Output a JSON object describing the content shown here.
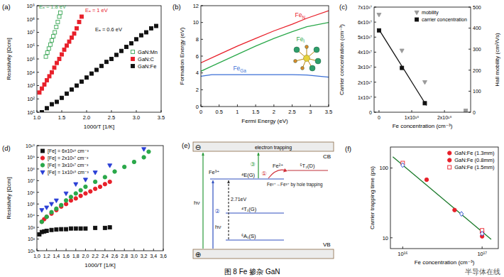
{
  "chart_data": [
    {
      "type": "scatter",
      "title": "(a)",
      "xlabel": "1000/T [1/K]",
      "ylabel": "Resistivity [Ωcm]",
      "log": "y",
      "grid": false,
      "legend": "right",
      "xlim": [
        1.0,
        3.5
      ],
      "ylim": [
        10,
        1000000000
      ],
      "xticks": [
        {
          "value": 1,
          "label": "1.0"
        },
        1.5,
        {
          "value": 2,
          "label": "2.0"
        },
        2.5,
        {
          "value": 3,
          "label": "3.0"
        },
        3.5
      ],
      "yticks": [
        {
          "value": 10,
          "label": "10¹"
        },
        {
          "value": 100,
          "label": "10²"
        },
        {
          "value": 1000,
          "label": "10³"
        },
        {
          "value": 10000,
          "label": "10⁴"
        },
        {
          "value": 100000,
          "label": "10⁵"
        },
        {
          "value": 1000000,
          "label": "10⁶"
        },
        {
          "value": 10000000,
          "label": "10⁷"
        },
        {
          "value": 100000000,
          "label": "10⁸"
        },
        {
          "value": 1000000000,
          "label": "10⁹"
        }
      ],
      "annotations": [
        {
          "text": "Eₐ = 1.8 eV",
          "color": "#3aa655"
        },
        {
          "text": "Eₐ = 1 eV",
          "color": "#e8202a"
        },
        {
          "text": "Eₐ = 0.6 eV",
          "color": "#111111"
        }
      ],
      "series": [
        {
          "name": "GaN:Mn",
          "color": "#3aa655",
          "marker": "open-square",
          "x": [
            1.18,
            1.21,
            1.24,
            1.27,
            1.3,
            1.33,
            1.36,
            1.39,
            1.42,
            1.45,
            1.47
          ],
          "values": [
            150000,
            300000,
            600000,
            1200000,
            2500000,
            5000000,
            10000000,
            25000000,
            60000000,
            150000000,
            300000000
          ]
        },
        {
          "name": "GaN:C",
          "color": "#e8202a",
          "marker": "square",
          "x": [
            1.05,
            1.1,
            1.15,
            1.2,
            1.25,
            1.3,
            1.35,
            1.4,
            1.45,
            1.5,
            1.55,
            1.6,
            1.65,
            1.7,
            1.75,
            1.8,
            1.85,
            1.9
          ],
          "values": [
            300,
            600,
            1200,
            2500,
            5000,
            10000,
            22000,
            50000,
            100000,
            220000,
            500000,
            1000000,
            2000000,
            4000000,
            8000000,
            20000000,
            60000000,
            150000000
          ]
        },
        {
          "name": "GaN:Fe",
          "color": "#111111",
          "marker": "square",
          "x": [
            1.1,
            1.2,
            1.3,
            1.4,
            1.5,
            1.6,
            1.7,
            1.8,
            1.9,
            2.0,
            2.1,
            2.2,
            2.3,
            2.4,
            2.5,
            2.6,
            2.7,
            2.8,
            2.9,
            3.0,
            3.1,
            3.2,
            3.3,
            3.4
          ],
          "values": [
            10,
            20,
            40,
            60,
            120,
            250,
            500,
            1000,
            2000,
            4000,
            8000,
            15000,
            30000,
            60000,
            100000,
            200000,
            400000,
            800000,
            1500000,
            3000000,
            6000000,
            10000000,
            20000000,
            30000000
          ]
        }
      ]
    },
    {
      "type": "line",
      "title": "(b)",
      "xlabel": "Fermi Energy (eV)",
      "ylabel": "Formation Energy (eV)",
      "grid": false,
      "xlim": [
        0,
        3.5
      ],
      "ylim": [
        0,
        12
      ],
      "xticks": [
        0,
        0.5,
        1,
        1.5,
        2,
        2.5,
        3,
        3.5
      ],
      "yticks": [
        0,
        2,
        4,
        6,
        8,
        10,
        12
      ],
      "series": [
        {
          "name": "FeN",
          "color": "#e8202a",
          "x": [
            0,
            0.5,
            1,
            1.5,
            2,
            2.5,
            2.9,
            3.5
          ],
          "values": [
            5.2,
            6.2,
            7.2,
            8.1,
            9.0,
            9.8,
            10.5,
            11.4
          ]
        },
        {
          "name": "Fei",
          "color": "#2aa84a",
          "x": [
            0,
            0.3,
            1,
            1.5,
            2,
            2.5,
            2.9,
            3.5
          ],
          "values": [
            4.2,
            4.8,
            6.2,
            7.2,
            8.1,
            8.9,
            9.5,
            10.0
          ]
        },
        {
          "name": "FeGa",
          "color": "#3b6fd6",
          "x": [
            0,
            0.3,
            1,
            2,
            2.5,
            2.9,
            3.5
          ],
          "values": [
            3.6,
            3.8,
            3.8,
            3.8,
            3.8,
            3.75,
            3.5
          ]
        }
      ]
    },
    {
      "type": "scatter",
      "title": "(c)",
      "xlabel": "Fe concentration (cm⁻³)",
      "ylabel": "Carrier concentration (cm⁻³)",
      "y2label": "Hall mobility (cm²/Vs)",
      "grid": false,
      "legend": "upper right",
      "xlim": [
        -1.5e+17,
        2.8e+18
      ],
      "ylim": [
        0,
        7e+17
      ],
      "y2lim": [
        0,
        500
      ],
      "xticks": [
        0,
        {
          "value": 1e+18,
          "label": "1x10¹⁸"
        },
        {
          "value": 2e+18,
          "label": "2x10¹⁸"
        }
      ],
      "yticks": [
        0,
        {
          "value": 1e+17,
          "label": "1x10¹⁷"
        },
        {
          "value": 2e+17,
          "label": "2x10¹⁷"
        },
        {
          "value": 3e+17,
          "label": "3x10¹⁷"
        },
        {
          "value": 4e+17,
          "label": "4x10¹⁷"
        },
        {
          "value": 5e+17,
          "label": "5x10¹⁷"
        },
        {
          "value": 6e+17,
          "label": "6x10¹⁷"
        },
        {
          "value": 7e+17,
          "label": "7x10¹⁷"
        }
      ],
      "y2ticks": [
        0,
        100,
        200,
        300,
        400,
        500
      ],
      "series": [
        {
          "type": "line",
          "color": "#111111",
          "x": [
            0,
            1.45e+18
          ],
          "values": [
            5.5e+17,
            4.5e+16
          ]
        },
        {
          "name": "mobility",
          "color": "#9a9a9a",
          "marker": "triangle-down",
          "axis": "y2",
          "x": [
            0,
            7e+17,
            1.4e+18
          ],
          "values": [
            464,
            293,
            143
          ]
        },
        {
          "name": "carrier concentration",
          "color": "#111111",
          "colors": [
            "#111111",
            "#111111",
            "#111111",
            "#9a9a9a"
          ],
          "marker": "square",
          "x": [
            0,
            7e+17,
            1.4e+18,
            2.65e+18
          ],
          "values": [
            5.45e+17,
            2.95e+17,
            6e+16,
            1e+16
          ]
        }
      ]
    },
    {
      "type": "scatter",
      "title": "(d)",
      "xlabel": "1000/T [1/K]",
      "ylabel": "Resistivity [Ωcm]",
      "log": "y",
      "grid": false,
      "legend": "upper left",
      "xlim": [
        1.0,
        3.6
      ],
      "ylim": [
        10,
        10000000000
      ],
      "xticks": [
        {
          "value": 1.0,
          "label": "1,0"
        },
        {
          "value": 1.2,
          "label": "1,2"
        },
        {
          "value": 1.4,
          "label": "1,4"
        },
        {
          "value": 1.6,
          "label": "1,6"
        },
        {
          "value": 1.8,
          "label": "1,8"
        },
        {
          "value": 2.0,
          "label": "2,0"
        },
        {
          "value": 2.2,
          "label": "2,2"
        },
        {
          "value": 2.4,
          "label": "2,4"
        },
        {
          "value": 2.6,
          "label": "2,6"
        },
        {
          "value": 2.8,
          "label": "2,8"
        },
        {
          "value": 3.0,
          "label": "3,0"
        },
        {
          "value": 3.2,
          "label": "3,2"
        },
        {
          "value": 3.4,
          "label": "3,4"
        },
        {
          "value": 3.6,
          "label": "3,6"
        }
      ],
      "yticks": [
        {
          "value": 10,
          "label": "10¹"
        },
        {
          "value": 100,
          "label": "10²"
        },
        {
          "value": 1000,
          "label": "10³"
        },
        {
          "value": 10000,
          "label": "10⁴"
        },
        {
          "value": 100000,
          "label": "10⁵"
        },
        {
          "value": 1000000,
          "label": "10⁶"
        },
        {
          "value": 10000000,
          "label": "10⁷"
        },
        {
          "value": 100000000,
          "label": "10⁸"
        },
        {
          "value": 1000000000,
          "label": "10⁹"
        },
        {
          "value": 10000000000,
          "label": "10¹⁰"
        }
      ],
      "series": [
        {
          "name": "[Fe] = 6x10¹⁶ cm⁻³",
          "color": "#111111",
          "marker": "square",
          "x": [
            1.05,
            1.1,
            1.15,
            1.2,
            1.3,
            1.4,
            1.5,
            1.6,
            1.7,
            1.8,
            1.9,
            2.0,
            2.2,
            2.4,
            2.5
          ],
          "values": [
            250,
            400,
            450,
            500,
            600,
            650,
            700,
            700,
            800,
            800,
            800,
            800,
            900,
            900,
            1000
          ]
        },
        {
          "name": "[Fe] = 2x10¹⁷ cm⁻³",
          "color": "#e8202a",
          "marker": "circle",
          "x": [
            1.1,
            1.15,
            1.2,
            1.3,
            1.4,
            1.5,
            1.6,
            1.7,
            1.8,
            1.9,
            2.0,
            2.1,
            2.2,
            2.3,
            2.4,
            2.5
          ],
          "values": [
            3000,
            5000,
            8000,
            15000,
            30000,
            60000,
            100000,
            200000,
            300000,
            500000,
            800000,
            1200000,
            2000000,
            3000000,
            5000000,
            8000000
          ]
        },
        {
          "name": "[Fe] = 3x10¹⁷ cm⁻³",
          "color": "#2aa84a",
          "marker": "circle",
          "x": [
            1.1,
            1.2,
            1.3,
            1.4,
            1.5,
            1.6,
            1.7,
            1.8,
            1.9,
            2.0,
            2.2,
            2.4,
            2.6,
            2.8,
            3.0,
            3.2,
            3.3
          ],
          "values": [
            3000,
            8000,
            20000,
            40000,
            80000,
            200000,
            400000,
            800000,
            1500000,
            3000000,
            8000000,
            20000000,
            60000000,
            150000000,
            400000000,
            1000000000,
            3000000000
          ]
        },
        {
          "name": "[Fe] = 1x10¹⁸ cm⁻³",
          "color": "#2a3fd6",
          "marker": "triangle-down",
          "x": [
            1.1,
            1.2,
            1.3,
            1.4,
            1.6,
            1.8,
            2.0,
            2.2,
            2.5,
            3.2
          ],
          "values": [
            30000,
            50000,
            100000,
            200000,
            800000,
            5000000,
            12000000,
            50000000,
            200000000,
            5000000000
          ]
        }
      ]
    },
    {
      "type": "scatter",
      "title": "(f)",
      "xlabel": "Fe concentration (cm⁻³)",
      "ylabel": "Carrier trapping time (ps)",
      "log": true,
      "grid": false,
      "legend": "upper right",
      "xlim": [
        7000000000000000.0,
        1.6e+17
      ],
      "ylim": [
        7,
        200
      ],
      "xticks": [
        {
          "value": 1e+16,
          "label": "10¹⁶"
        },
        {
          "value": 1e+17,
          "label": "10¹⁷"
        }
      ],
      "yticks": [
        10,
        100
      ],
      "series": [
        {
          "type": "line",
          "color": "#1a7a2a",
          "x": [
            7500000000000000.0,
            1.3e+17
          ],
          "values": [
            145,
            9.5
          ]
        },
        {
          "name": "GaN:Fe (1.3mm)",
          "color": "#e8202a",
          "marker": "circle",
          "x": [
            2e+16,
            4.5e+16,
            1e+17
          ],
          "values": [
            68,
            25,
            12
          ]
        },
        {
          "name": "GaN:Fe (0.8mm)",
          "color": "#e8202a",
          "marker": "circle",
          "x": [
            1e+17
          ],
          "values": [
            10.5
          ]
        },
        {
          "name": "GaN:Fe (1.5mm)",
          "color": "#e8202a",
          "marker": "open-square",
          "x": [
            1e+16,
            1e+17
          ],
          "values": [
            118,
            12.8
          ]
        },
        {
          "color": "#3b5bd6",
          "marker": "open-diamond",
          "x": [
            1e+16,
            5.5e+16,
            1e+17
          ],
          "values": [
            110,
            22,
            11.5
          ]
        }
      ]
    }
  ],
  "diagram": {
    "title": "(e)",
    "band_top": "electron trapping",
    "cb": "CB",
    "vb": "VB",
    "electron": "⊖",
    "hole": "⊕",
    "levels": [
      "⁴E(G)",
      "⁴T₁(G)",
      "⁶A₁(S)"
    ],
    "labels": [
      "Fe³⁺",
      "hν",
      "hν",
      "2.71eV",
      "Fe²⁺",
      "⁵T₂(D)",
      "Fe²⁺→Fe³⁺ by hole trapping",
      "①",
      "②",
      "③"
    ]
  },
  "caption": "图 8 Fe 掺杂 GaN",
  "watermark": "半导体在线"
}
